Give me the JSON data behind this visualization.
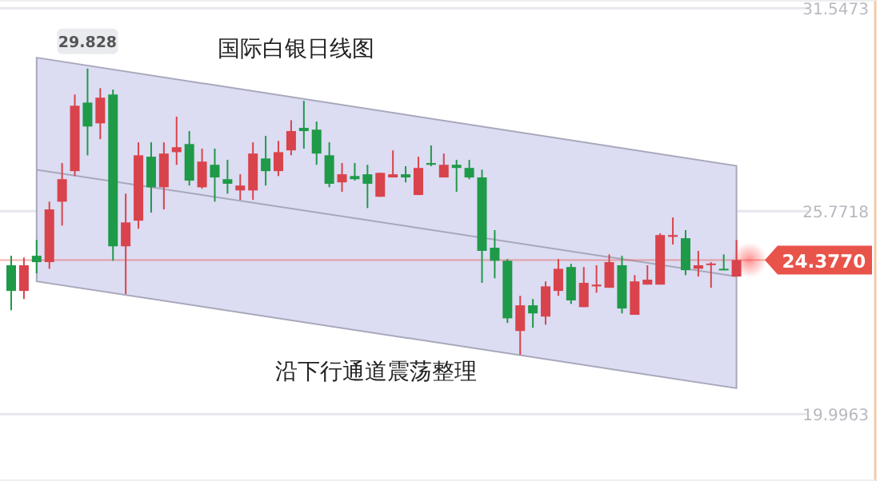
{
  "chart_data": {
    "type": "candlestick",
    "title": "国际白银日线图",
    "categories": [
      null,
      null,
      null,
      null,
      null,
      null,
      null,
      null,
      null,
      null,
      null,
      null,
      null,
      null,
      null,
      null,
      null,
      null,
      null,
      null,
      null,
      null,
      null,
      null,
      null,
      null,
      null,
      null,
      null,
      null,
      null,
      null,
      null,
      null,
      null,
      null,
      null,
      null,
      null,
      null,
      null,
      null,
      null,
      null,
      null,
      null,
      null,
      null,
      null,
      null,
      null,
      null,
      null,
      null,
      null,
      null,
      null,
      null
    ],
    "ohlc": [
      [
        24.23,
        24.5,
        22.95,
        23.5
      ],
      [
        23.5,
        24.45,
        23.27,
        24.23
      ],
      [
        24.5,
        24.95,
        24.0,
        24.32
      ],
      [
        24.32,
        26.04,
        24.13,
        25.82
      ],
      [
        26.04,
        27.14,
        25.36,
        26.68
      ],
      [
        26.91,
        29.09,
        26.77,
        28.77
      ],
      [
        28.86,
        29.828,
        27.36,
        28.18
      ],
      [
        28.27,
        29.27,
        27.82,
        29.0
      ],
      [
        29.09,
        29.23,
        24.36,
        24.77
      ],
      [
        24.77,
        26.27,
        23.41,
        25.45
      ],
      [
        25.5,
        27.73,
        25.27,
        27.36
      ],
      [
        27.32,
        27.73,
        25.73,
        26.45
      ],
      [
        26.45,
        27.73,
        25.82,
        27.41
      ],
      [
        27.45,
        28.46,
        27.09,
        27.59
      ],
      [
        27.68,
        28.05,
        26.5,
        26.64
      ],
      [
        26.45,
        27.55,
        26.41,
        27.18
      ],
      [
        27.09,
        27.55,
        26.04,
        26.73
      ],
      [
        26.68,
        27.23,
        26.27,
        26.55
      ],
      [
        26.36,
        26.82,
        26.09,
        26.5
      ],
      [
        26.36,
        27.73,
        26.09,
        27.41
      ],
      [
        27.27,
        27.91,
        26.5,
        26.91
      ],
      [
        26.91,
        27.77,
        26.77,
        27.45
      ],
      [
        27.5,
        28.36,
        27.36,
        28.05
      ],
      [
        28.14,
        28.91,
        27.55,
        28.05
      ],
      [
        28.09,
        28.32,
        27.09,
        27.41
      ],
      [
        27.36,
        27.73,
        26.45,
        26.55
      ],
      [
        26.59,
        27.14,
        26.32,
        26.82
      ],
      [
        26.77,
        27.14,
        26.64,
        26.68
      ],
      [
        26.82,
        27.09,
        25.86,
        26.55
      ],
      [
        26.18,
        26.86,
        26.18,
        26.86
      ],
      [
        26.73,
        27.5,
        26.73,
        26.82
      ],
      [
        26.82,
        27.05,
        26.59,
        26.73
      ],
      [
        26.23,
        27.32,
        26.23,
        27.0
      ],
      [
        27.14,
        27.64,
        27.05,
        27.09
      ],
      [
        26.73,
        27.41,
        26.73,
        27.09
      ],
      [
        27.09,
        27.23,
        26.32,
        27.0
      ],
      [
        27.0,
        27.23,
        26.68,
        26.73
      ],
      [
        26.73,
        26.95,
        23.73,
        24.64
      ],
      [
        24.73,
        25.23,
        23.86,
        24.36
      ],
      [
        24.36,
        24.41,
        22.59,
        22.72
      ],
      [
        22.36,
        23.36,
        21.68,
        23.09
      ],
      [
        23.09,
        23.27,
        22.45,
        22.86
      ],
      [
        22.77,
        23.77,
        22.54,
        23.63
      ],
      [
        23.5,
        24.41,
        23.36,
        24.13
      ],
      [
        24.18,
        24.27,
        23.13,
        23.23
      ],
      [
        23.04,
        24.18,
        23.04,
        23.73
      ],
      [
        23.63,
        24.23,
        23.45,
        23.68
      ],
      [
        23.59,
        24.54,
        23.59,
        24.32
      ],
      [
        24.23,
        24.5,
        22.86,
        23.0
      ],
      [
        22.82,
        23.95,
        22.82,
        23.77
      ],
      [
        23.68,
        24.23,
        23.68,
        23.82
      ],
      [
        23.68,
        25.14,
        23.68,
        25.09
      ],
      [
        25.04,
        25.59,
        24.82,
        25.09
      ],
      [
        25.0,
        25.23,
        23.95,
        24.09
      ],
      [
        24.13,
        24.64,
        23.91,
        24.23
      ],
      [
        24.27,
        24.32,
        23.59,
        24.28
      ],
      [
        24.13,
        24.54,
        24.09,
        24.09
      ],
      [
        23.91,
        24.95,
        23.91,
        24.377
      ]
    ],
    "colors": [
      "#1e9a48",
      "#d9434b",
      "#1e9a48",
      "#d9434b",
      "#d9434b",
      "#d9434b",
      "#1e9a48",
      "#d9434b",
      "#1e9a48",
      "#d9434b",
      "#d9434b",
      "#1e9a48",
      "#d9434b",
      "#d9434b",
      "#1e9a48",
      "#d9434b",
      "#1e9a48",
      "#1e9a48",
      "#d9434b",
      "#d9434b",
      "#1e9a48",
      "#d9434b",
      "#d9434b",
      "#1e9a48",
      "#1e9a48",
      "#1e9a48",
      "#d9434b",
      "#1e9a48",
      "#1e9a48",
      "#d9434b",
      "#d9434b",
      "#1e9a48",
      "#d9434b",
      "#1e9a48",
      "#d9434b",
      "#1e9a48",
      "#1e9a48",
      "#1e9a48",
      "#1e9a48",
      "#1e9a48",
      "#d9434b",
      "#1e9a48",
      "#d9434b",
      "#d9434b",
      "#1e9a48",
      "#d9434b",
      "#d9434b",
      "#d9434b",
      "#1e9a48",
      "#d9434b",
      "#d9434b",
      "#d9434b",
      "#d9434b",
      "#1e9a48",
      "#d9434b",
      "#d9434b",
      "#1e9a48",
      "#d9434b"
    ],
    "series": [
      {
        "type": "line",
        "values": [
          null,
          null,
          26.95,
          null,
          null,
          null,
          null,
          null,
          null,
          null,
          null,
          null,
          null,
          null,
          null,
          null,
          null,
          null,
          null,
          null,
          null,
          null,
          null,
          null,
          null,
          null,
          null,
          null,
          null,
          null,
          null,
          null,
          null,
          null,
          null,
          null,
          null,
          null,
          null,
          null,
          null,
          null,
          null,
          null,
          null,
          null,
          null,
          null,
          null,
          null,
          null,
          null,
          null,
          null,
          null,
          null,
          null,
          23.91
        ],
        "lower": [
          null,
          null,
          23.77,
          null,
          null,
          null,
          null,
          null,
          null,
          null,
          null,
          null,
          null,
          null,
          null,
          null,
          null,
          null,
          null,
          null,
          null,
          null,
          null,
          null,
          null,
          null,
          null,
          null,
          null,
          null,
          null,
          null,
          null,
          null,
          null,
          null,
          null,
          null,
          null,
          null,
          null,
          null,
          null,
          null,
          null,
          null,
          null,
          null,
          null,
          null,
          null,
          null,
          null,
          null,
          null,
          null,
          null,
          20.73
        ],
        "upper": [
          null,
          null,
          30.14,
          null,
          null,
          null,
          null,
          null,
          null,
          null,
          null,
          null,
          null,
          null,
          null,
          null,
          null,
          null,
          null,
          null,
          null,
          null,
          null,
          null,
          null,
          null,
          null,
          null,
          null,
          null,
          null,
          null,
          null,
          null,
          null,
          null,
          null,
          null,
          null,
          null,
          null,
          null,
          null,
          null,
          null,
          null,
          null,
          null,
          null,
          null,
          null,
          null,
          null,
          null,
          null,
          null,
          null,
          27.06
        ],
        "color": "#a8a8bc"
      }
    ],
    "ylim": [
      18.09,
      31.78
    ],
    "yticks": [
      19.9963,
      25.7718,
      31.5473
    ],
    "ref_lines": [
      {
        "axis": "y",
        "value": 24.377,
        "label": "24.3770",
        "color": "#e8534a"
      }
    ],
    "annotations": [
      {
        "text": "29.828",
        "y": 29.828
      },
      "沿下行通道震荡整理"
    ],
    "grid": "y",
    "tick_labels": "y"
  }
}
